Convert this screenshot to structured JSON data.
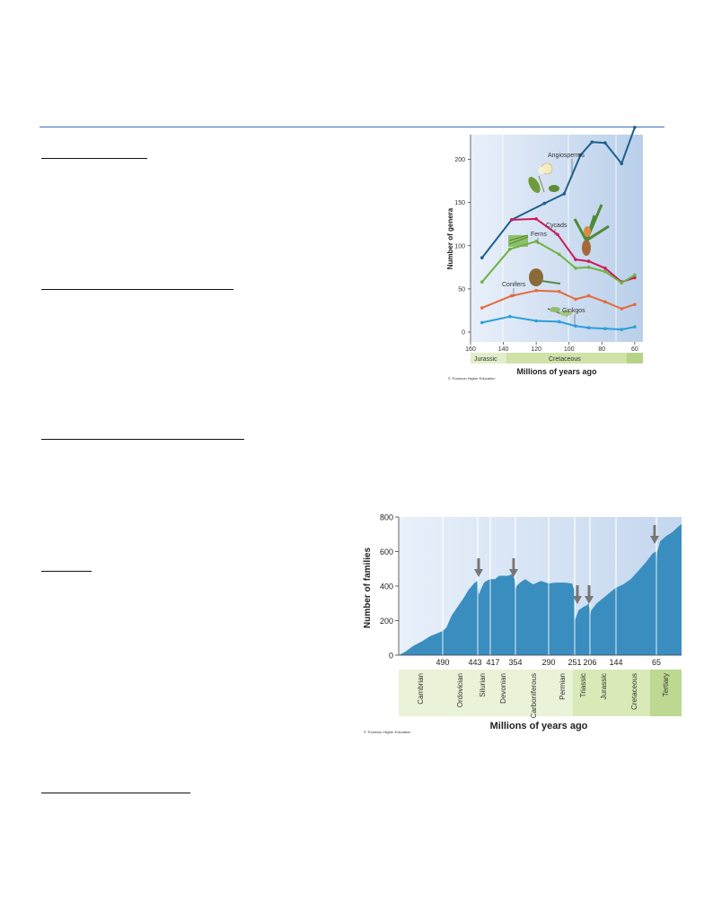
{
  "charts": [
    {
      "chart_data": {
        "type": "line",
        "xlabel": "Millions of years ago",
        "ylabel": "Number of genera",
        "xlim": [
          160,
          55
        ],
        "ylim": [
          0,
          240
        ],
        "x_ticks": [
          "160",
          "140",
          "120",
          "100",
          "80",
          "60"
        ],
        "y_ticks": [
          "0",
          "50",
          "100",
          "150",
          "200"
        ],
        "periods": [
          "Jurassic",
          "Cretaceous"
        ],
        "series": [
          {
            "name": "Angiosperms",
            "color": "#1f5f8b",
            "x": [
              153,
              135,
              115,
              103,
              93,
              86,
              78,
              68,
              60
            ],
            "y": [
              86,
              130,
              149,
              160,
              205,
              220,
              219,
              195,
              237
            ]
          },
          {
            "name": "Cycads",
            "color": "#cc1a5a",
            "x": [
              135,
              120,
              107,
              96,
              88,
              78,
              68,
              60
            ],
            "y": [
              130,
              131,
              113,
              84,
              82,
              74,
              58,
              63
            ]
          },
          {
            "name": "Ferns",
            "color": "#6db33f",
            "x": [
              153,
              136,
              120,
              106,
              96,
              88,
              78,
              68,
              60
            ],
            "y": [
              58,
              96,
              105,
              90,
              74,
              75,
              70,
              57,
              66
            ]
          },
          {
            "name": "Conifers",
            "color": "#e56a3c",
            "x": [
              153,
              135,
              120,
              106,
              96,
              88,
              78,
              68,
              60
            ],
            "y": [
              28,
              42,
              48,
              47,
              38,
              42,
              35,
              27,
              32
            ]
          },
          {
            "name": "Ginkgos",
            "color": "#2a9fd8",
            "x": [
              153,
              136,
              120,
              106,
              96,
              88,
              78,
              68,
              60
            ],
            "y": [
              11,
              18,
              13,
              12,
              7,
              5,
              4,
              3,
              6
            ]
          }
        ]
      },
      "credit": "© Thomson Higher Education"
    },
    {
      "chart_data": {
        "type": "area",
        "xlabel": "Millions of years ago",
        "ylabel": "Number of families",
        "ylim": [
          0,
          800
        ],
        "y_ticks": [
          "0",
          "200",
          "400",
          "600",
          "800"
        ],
        "x_ticks": [
          "490",
          "443",
          "417",
          "354",
          "290",
          "251",
          "206",
          "144",
          "65"
        ],
        "periods": [
          "Cambrian",
          "Ordovician",
          "Silurian",
          "Devonian",
          "Carboniferous",
          "Permian",
          "Triassic",
          "Jurassic",
          "Cretaceous",
          "Tertiary"
        ],
        "mass_extinctions": [
          "443",
          "354",
          "251",
          "206",
          "65"
        ],
        "series": [
          {
            "name": "Families",
            "color": "#3a8ebf",
            "x": [
              543,
              535,
              525,
              515,
              505,
              495,
              490,
              485,
              478,
              470,
              462,
              455,
              447,
              443,
              441,
              435,
              430,
              425,
              417,
              405,
              395,
              385,
              372,
              362,
              356,
              354,
              352,
              345,
              335,
              320,
              305,
              290,
              280,
              265,
              255,
              252,
              251,
              249,
              240,
              225,
              215,
              210,
              207,
              206,
              203,
              190,
              175,
              160,
              150,
              144,
              130,
              115,
              100,
              85,
              72,
              66,
              65,
              63,
              55,
              40,
              25,
              10,
              0
            ],
            "y": [
              0,
              20,
              55,
              80,
              110,
              130,
              140,
              160,
              230,
              280,
              330,
              380,
              420,
              430,
              350,
              390,
              420,
              430,
              440,
              440,
              460,
              460,
              460,
              470,
              440,
              370,
              400,
              420,
              440,
              410,
              430,
              415,
              420,
              420,
              415,
              380,
              200,
              210,
              260,
              280,
              290,
              300,
              270,
              230,
              260,
              300,
              330,
              360,
              380,
              390,
              410,
              440,
              490,
              540,
              590,
              600,
              530,
              600,
              660,
              690,
              710,
              740,
              760
            ]
          }
        ]
      },
      "credit": "© Thomson Higher Education"
    }
  ]
}
